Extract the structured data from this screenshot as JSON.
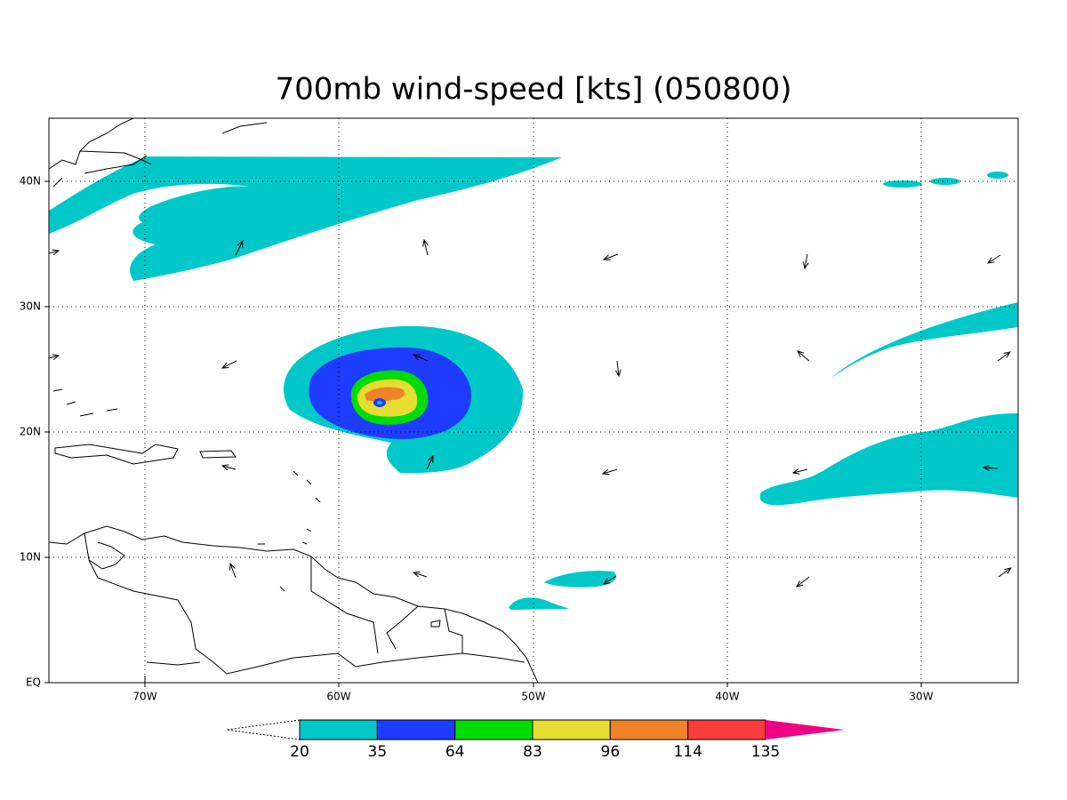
{
  "title": "700mb wind-speed [kts] (050800)",
  "map": {
    "lon_labels": [
      "70W",
      "60W",
      "50W",
      "40W",
      "30W"
    ],
    "lat_labels": [
      "EQ",
      "10N",
      "20N",
      "30N",
      "40N"
    ]
  },
  "colorbar": {
    "levels": [
      20,
      35,
      64,
      83,
      96,
      114,
      135
    ],
    "colors": [
      "#00c8c8",
      "#1e3cff",
      "#00dc00",
      "#e6dc32",
      "#f08228",
      "#fa3c3c",
      "#f00082"
    ]
  }
}
